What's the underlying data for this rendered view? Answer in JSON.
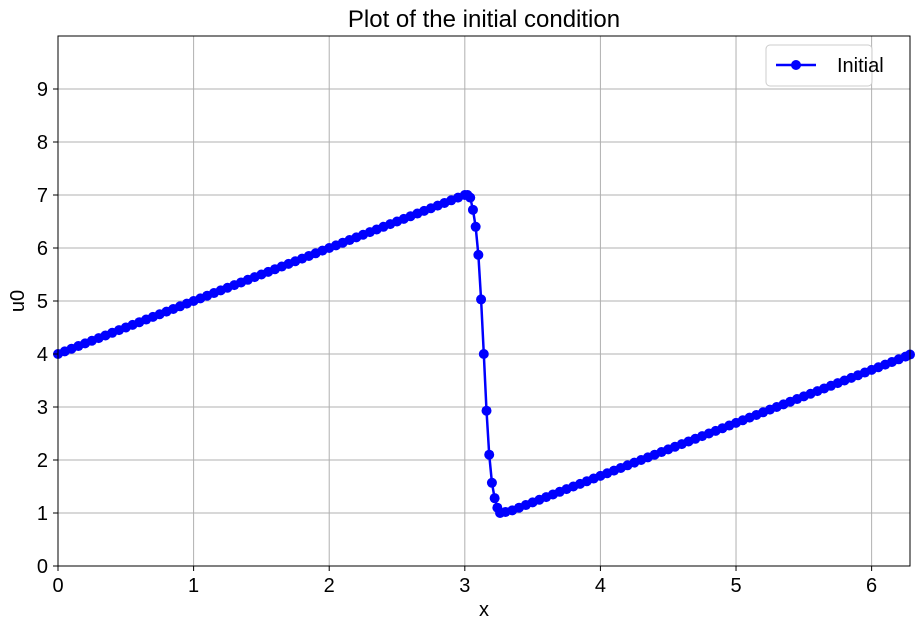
{
  "chart_data": {
    "type": "line",
    "title": "Plot of the initial condition",
    "xlabel": "x",
    "ylabel": "u0",
    "xlim": [
      0,
      6.283
    ],
    "ylim": [
      0,
      10
    ],
    "xticks": [
      "0",
      "1",
      "2",
      "3",
      "4",
      "5",
      "6"
    ],
    "yticks": [
      "0",
      "1",
      "2",
      "3",
      "4",
      "5",
      "6",
      "7",
      "8",
      "9"
    ],
    "grid": true,
    "legend": "upper right",
    "series_color": "#0000ff",
    "series": [
      {
        "name": "Initial",
        "marker": "circle",
        "x": [
          0,
          0.05,
          0.1,
          0.15,
          0.2,
          0.25,
          0.3,
          0.35,
          0.4,
          0.45,
          0.5,
          0.55,
          0.6,
          0.65,
          0.7,
          0.75,
          0.8,
          0.85,
          0.9,
          0.95,
          1.0,
          1.05,
          1.1,
          1.15,
          1.2,
          1.25,
          1.3,
          1.35,
          1.4,
          1.45,
          1.5,
          1.55,
          1.6,
          1.65,
          1.7,
          1.75,
          1.8,
          1.85,
          1.9,
          1.95,
          2.0,
          2.05,
          2.1,
          2.15,
          2.2,
          2.25,
          2.3,
          2.35,
          2.4,
          2.45,
          2.5,
          2.55,
          2.6,
          2.65,
          2.7,
          2.75,
          2.8,
          2.85,
          2.9,
          2.95,
          3.0,
          3.02,
          3.04,
          3.06,
          3.08,
          3.1,
          3.12,
          3.14,
          3.16,
          3.18,
          3.2,
          3.22,
          3.24,
          3.26,
          3.3,
          3.35,
          3.4,
          3.45,
          3.5,
          3.55,
          3.6,
          3.65,
          3.7,
          3.75,
          3.8,
          3.85,
          3.9,
          3.95,
          4.0,
          4.05,
          4.1,
          4.15,
          4.2,
          4.25,
          4.3,
          4.35,
          4.4,
          4.45,
          4.5,
          4.55,
          4.6,
          4.65,
          4.7,
          4.75,
          4.8,
          4.85,
          4.9,
          4.95,
          5.0,
          5.05,
          5.1,
          5.15,
          5.2,
          5.25,
          5.3,
          5.35,
          5.4,
          5.45,
          5.5,
          5.55,
          5.6,
          5.65,
          5.7,
          5.75,
          5.8,
          5.85,
          5.9,
          5.95,
          6.0,
          6.05,
          6.1,
          6.15,
          6.2,
          6.25,
          6.283
        ],
        "y": [
          4.0,
          4.05,
          4.1,
          4.15,
          4.2,
          4.25,
          4.3,
          4.35,
          4.4,
          4.45,
          4.5,
          4.55,
          4.6,
          4.65,
          4.7,
          4.75,
          4.8,
          4.85,
          4.9,
          4.95,
          5.0,
          5.05,
          5.1,
          5.15,
          5.2,
          5.25,
          5.3,
          5.35,
          5.4,
          5.45,
          5.5,
          5.55,
          5.6,
          5.65,
          5.7,
          5.75,
          5.8,
          5.85,
          5.9,
          5.95,
          6.0,
          6.05,
          6.1,
          6.15,
          6.2,
          6.25,
          6.3,
          6.35,
          6.4,
          6.45,
          6.5,
          6.55,
          6.6,
          6.65,
          6.7,
          6.75,
          6.8,
          6.85,
          6.9,
          6.95,
          7.0,
          7.0,
          6.95,
          6.72,
          6.4,
          5.87,
          5.03,
          4.0,
          2.93,
          2.1,
          1.57,
          1.28,
          1.1,
          1.0,
          1.02,
          1.05,
          1.1,
          1.15,
          1.2,
          1.25,
          1.3,
          1.35,
          1.4,
          1.45,
          1.5,
          1.55,
          1.6,
          1.65,
          1.7,
          1.75,
          1.8,
          1.85,
          1.9,
          1.95,
          2.0,
          2.05,
          2.1,
          2.15,
          2.2,
          2.25,
          2.3,
          2.35,
          2.4,
          2.45,
          2.5,
          2.55,
          2.6,
          2.65,
          2.7,
          2.75,
          2.8,
          2.85,
          2.9,
          2.95,
          3.0,
          3.05,
          3.1,
          3.15,
          3.2,
          3.25,
          3.3,
          3.35,
          3.4,
          3.45,
          3.5,
          3.55,
          3.6,
          3.65,
          3.7,
          3.75,
          3.8,
          3.85,
          3.9,
          3.95,
          3.99
        ]
      }
    ]
  }
}
